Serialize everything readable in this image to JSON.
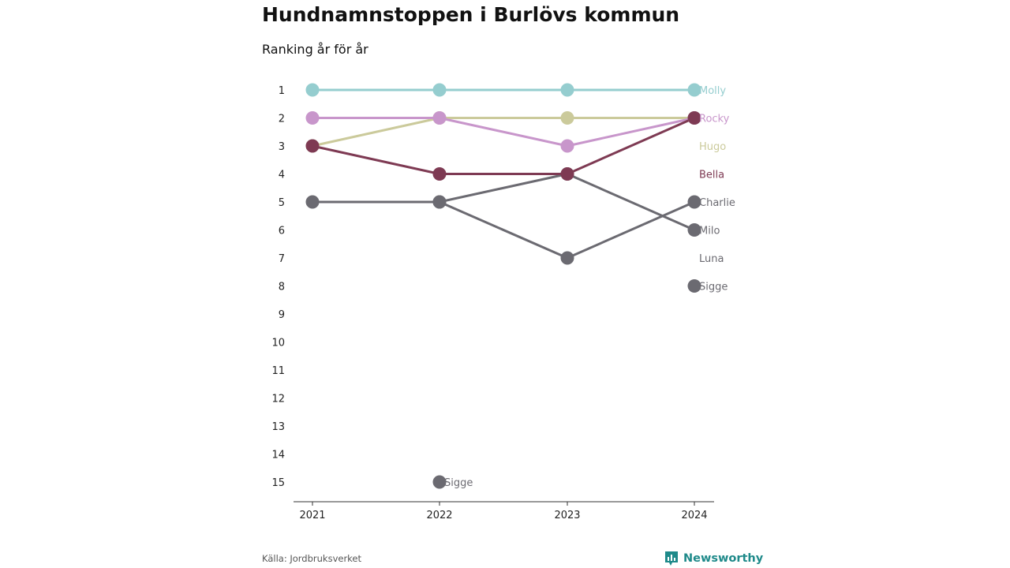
{
  "title": "Hundnamnstoppen i Burlövs kommun",
  "subtitle": "Ranking år för år",
  "source": "Källa: Jordbruksverket",
  "brand": {
    "name": "Newsworthy",
    "icon": "bar-chart-logo-icon",
    "color": "#1f8a8a"
  },
  "chart_data": {
    "type": "line",
    "chart_kind": "bump",
    "x": [
      "2021",
      "2022",
      "2023",
      "2024"
    ],
    "y_ticks": [
      "1",
      "2",
      "3",
      "4",
      "5",
      "6",
      "7",
      "8",
      "9",
      "10",
      "11",
      "12",
      "13",
      "14",
      "15"
    ],
    "ylim": [
      1,
      15
    ],
    "y_reversed": true,
    "grid": false,
    "series": [
      {
        "name": "Charlie",
        "color": "#6b6a71",
        "values": [
          5,
          5,
          7,
          5
        ]
      },
      {
        "name": "Milo",
        "color": "#6b6a71",
        "values": [
          null,
          5,
          4,
          6
        ]
      },
      {
        "name": "Sigge",
        "color": "#6b6a71",
        "values": [
          null,
          15,
          null,
          8
        ]
      },
      {
        "name": "Luna",
        "color": "#6b6a71",
        "values": [
          null,
          null,
          null,
          null
        ]
      },
      {
        "name": "Hugo",
        "color": "#cbca9b",
        "values": [
          3,
          2,
          2,
          2
        ]
      },
      {
        "name": "Rocky",
        "color": "#c896cb",
        "values": [
          2,
          2,
          3,
          2
        ]
      },
      {
        "name": "Bella",
        "color": "#7e3a53",
        "values": [
          3,
          4,
          4,
          2
        ]
      },
      {
        "name": "Molly",
        "color": "#95cdcf",
        "values": [
          1,
          1,
          1,
          1
        ]
      }
    ],
    "end_labels": [
      {
        "text": "Molly",
        "rank": 1,
        "color": "#95cdcf"
      },
      {
        "text": "Rocky",
        "rank": 2,
        "color": "#c896cb"
      },
      {
        "text": "Hugo",
        "rank": 3,
        "color": "#cbca9b"
      },
      {
        "text": "Bella",
        "rank": 4,
        "color": "#7e3a53"
      },
      {
        "text": "Charlie",
        "rank": 5,
        "color": "#6b6a71"
      },
      {
        "text": "Milo",
        "rank": 6,
        "color": "#6b6a71"
      },
      {
        "text": "Luna",
        "rank": 7,
        "color": "#6b6a71"
      },
      {
        "text": "Sigge",
        "rank": 8,
        "color": "#6b6a71"
      }
    ],
    "annotations": [
      {
        "text": "Sigge",
        "x": "2022",
        "rank": 15,
        "color": "#6b6a71"
      }
    ]
  }
}
